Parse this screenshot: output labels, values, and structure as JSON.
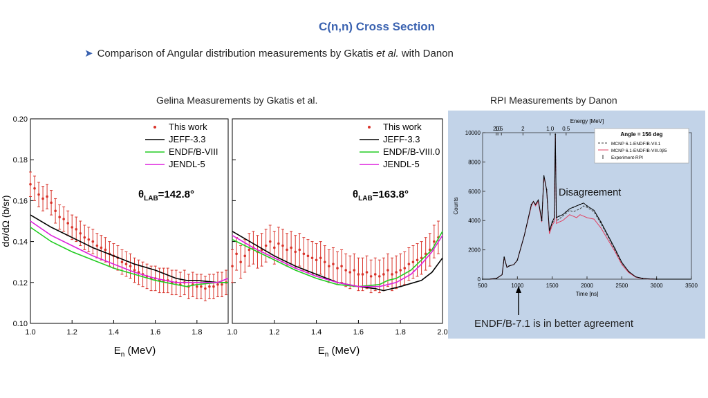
{
  "slide": {
    "title": "C(n,n) Cross Section",
    "bullet_a": "Comparison of Angular distribution measurements by Gkatis",
    "bullet_em": "et al.",
    "bullet_b": "with Danon",
    "left_caption": "Gelina Measurements by Gkatis et al.",
    "right_caption": "RPI Measurements by Danon",
    "note_disagreement": "Disagreement",
    "note_agreement": "ENDF/B-7.1 is in better agreement"
  },
  "colors": {
    "title": "#3a62b0",
    "this_work": "#d9342b",
    "jeff": "#000000",
    "endf": "#22cc22",
    "jendl": "#dd22dd",
    "rpi_bg": "#c2d3e8",
    "mcnp71": "#3a3a3a",
    "mcnp80": "#e24060"
  },
  "chart_data": [
    {
      "type": "scatter",
      "title": "",
      "angle_label": "θLAB=142.8°",
      "xlabel": "En (MeV)",
      "ylabel": "dσ/dΩ (b/sr)",
      "xlim": [
        1.0,
        1.95
      ],
      "ylim": [
        0.1,
        0.2
      ],
      "xticks": [
        "1.0",
        "1.2",
        "1.4",
        "1.6",
        "1.8"
      ],
      "yticks": [
        "0.10",
        "0.12",
        "0.14",
        "0.16",
        "0.18",
        "0.20"
      ],
      "legend": [
        "This work",
        "JEFF-3.3",
        "ENDF/B-VIII",
        "JENDL-5"
      ],
      "legend_position": "top-right",
      "series": [
        {
          "name": "JEFF-3.3",
          "x": [
            1.0,
            1.1,
            1.2,
            1.3,
            1.4,
            1.5,
            1.6,
            1.7,
            1.75,
            1.8,
            1.9,
            1.95
          ],
          "y": [
            0.153,
            0.147,
            0.142,
            0.137,
            0.133,
            0.129,
            0.126,
            0.122,
            0.121,
            0.121,
            0.12,
            0.12
          ]
        },
        {
          "name": "ENDF/B-VIII",
          "x": [
            1.0,
            1.1,
            1.2,
            1.3,
            1.4,
            1.5,
            1.6,
            1.7,
            1.75,
            1.8,
            1.9,
            1.95
          ],
          "y": [
            0.147,
            0.14,
            0.135,
            0.131,
            0.127,
            0.124,
            0.121,
            0.119,
            0.118,
            0.119,
            0.12,
            0.12
          ]
        },
        {
          "name": "JENDL-5",
          "x": [
            1.0,
            1.1,
            1.2,
            1.3,
            1.4,
            1.5,
            1.6,
            1.7,
            1.75,
            1.8,
            1.9,
            1.95
          ],
          "y": [
            0.15,
            0.143,
            0.138,
            0.133,
            0.129,
            0.125,
            0.122,
            0.12,
            0.12,
            0.12,
            0.12,
            0.122
          ]
        },
        {
          "name": "This work",
          "x": [
            1.0,
            1.02,
            1.04,
            1.06,
            1.08,
            1.1,
            1.12,
            1.14,
            1.16,
            1.18,
            1.2,
            1.22,
            1.24,
            1.26,
            1.28,
            1.3,
            1.32,
            1.34,
            1.36,
            1.38,
            1.4,
            1.42,
            1.44,
            1.46,
            1.48,
            1.5,
            1.52,
            1.54,
            1.56,
            1.58,
            1.6,
            1.62,
            1.64,
            1.66,
            1.68,
            1.7,
            1.72,
            1.74,
            1.76,
            1.78,
            1.8,
            1.82,
            1.84,
            1.86,
            1.88,
            1.9,
            1.92,
            1.94
          ],
          "y": [
            0.168,
            0.166,
            0.163,
            0.161,
            0.162,
            0.159,
            0.155,
            0.152,
            0.151,
            0.149,
            0.147,
            0.146,
            0.144,
            0.142,
            0.141,
            0.14,
            0.138,
            0.137,
            0.136,
            0.134,
            0.133,
            0.132,
            0.13,
            0.129,
            0.128,
            0.126,
            0.125,
            0.124,
            0.123,
            0.122,
            0.122,
            0.121,
            0.121,
            0.121,
            0.12,
            0.12,
            0.119,
            0.12,
            0.118,
            0.119,
            0.118,
            0.118,
            0.117,
            0.118,
            0.118,
            0.119,
            0.119,
            0.12
          ],
          "err": [
            0.006,
            0.006,
            0.006,
            0.006,
            0.006,
            0.006,
            0.006,
            0.006,
            0.006,
            0.006,
            0.006,
            0.006,
            0.006,
            0.006,
            0.006,
            0.006,
            0.006,
            0.006,
            0.006,
            0.006,
            0.006,
            0.006,
            0.006,
            0.006,
            0.006,
            0.006,
            0.006,
            0.006,
            0.006,
            0.006,
            0.006,
            0.006,
            0.006,
            0.006,
            0.006,
            0.006,
            0.006,
            0.006,
            0.006,
            0.006,
            0.006,
            0.006,
            0.006,
            0.006,
            0.006,
            0.006,
            0.006,
            0.006
          ]
        }
      ]
    },
    {
      "type": "scatter",
      "title": "",
      "angle_label": "θLAB=163.8°",
      "xlabel": "En (MeV)",
      "xlim": [
        1.0,
        2.0
      ],
      "ylim": [
        0.1,
        0.2
      ],
      "xticks": [
        "1.0",
        "1.2",
        "1.4",
        "1.6",
        "1.8",
        "2.0"
      ],
      "legend": [
        "This work",
        "JEFF-3.3",
        "ENDF/B-VIII.0",
        "JENDL-5"
      ],
      "legend_position": "top-right",
      "series": [
        {
          "name": "JEFF-3.3",
          "x": [
            1.0,
            1.1,
            1.2,
            1.3,
            1.4,
            1.5,
            1.6,
            1.68,
            1.72,
            1.76,
            1.8,
            1.9,
            1.95,
            2.0
          ],
          "y": [
            0.145,
            0.139,
            0.133,
            0.128,
            0.124,
            0.12,
            0.118,
            0.117,
            0.116,
            0.117,
            0.118,
            0.121,
            0.125,
            0.132
          ]
        },
        {
          "name": "ENDF/B-VIII.0",
          "x": [
            1.0,
            1.1,
            1.2,
            1.3,
            1.4,
            1.5,
            1.6,
            1.7,
            1.74,
            1.78,
            1.85,
            1.9,
            1.95,
            2.0
          ],
          "y": [
            0.141,
            0.136,
            0.131,
            0.126,
            0.122,
            0.119,
            0.118,
            0.119,
            0.121,
            0.122,
            0.126,
            0.131,
            0.136,
            0.145
          ]
        },
        {
          "name": "JENDL-5",
          "x": [
            1.0,
            1.1,
            1.2,
            1.3,
            1.4,
            1.5,
            1.6,
            1.7,
            1.74,
            1.78,
            1.85,
            1.9,
            1.95,
            2.0
          ],
          "y": [
            0.143,
            0.137,
            0.132,
            0.127,
            0.123,
            0.12,
            0.118,
            0.118,
            0.119,
            0.12,
            0.124,
            0.129,
            0.135,
            0.143
          ]
        },
        {
          "name": "This work",
          "x": [
            1.0,
            1.02,
            1.04,
            1.06,
            1.08,
            1.1,
            1.12,
            1.14,
            1.16,
            1.18,
            1.2,
            1.22,
            1.24,
            1.26,
            1.28,
            1.3,
            1.32,
            1.34,
            1.36,
            1.38,
            1.4,
            1.42,
            1.44,
            1.46,
            1.48,
            1.5,
            1.52,
            1.54,
            1.56,
            1.58,
            1.6,
            1.62,
            1.64,
            1.66,
            1.68,
            1.7,
            1.72,
            1.74,
            1.76,
            1.78,
            1.8,
            1.82,
            1.84,
            1.86,
            1.88,
            1.9,
            1.92,
            1.94,
            1.96,
            1.98
          ],
          "y": [
            0.128,
            0.134,
            0.13,
            0.133,
            0.136,
            0.137,
            0.135,
            0.136,
            0.138,
            0.14,
            0.137,
            0.139,
            0.138,
            0.136,
            0.137,
            0.135,
            0.136,
            0.134,
            0.133,
            0.132,
            0.131,
            0.132,
            0.13,
            0.128,
            0.129,
            0.127,
            0.128,
            0.126,
            0.125,
            0.126,
            0.124,
            0.124,
            0.125,
            0.123,
            0.124,
            0.123,
            0.124,
            0.126,
            0.124,
            0.125,
            0.126,
            0.127,
            0.129,
            0.13,
            0.131,
            0.132,
            0.134,
            0.136,
            0.14,
            0.142
          ],
          "err": [
            0.008,
            0.008,
            0.008,
            0.008,
            0.008,
            0.008,
            0.008,
            0.008,
            0.008,
            0.008,
            0.008,
            0.008,
            0.008,
            0.008,
            0.008,
            0.008,
            0.008,
            0.008,
            0.008,
            0.008,
            0.008,
            0.008,
            0.008,
            0.008,
            0.008,
            0.008,
            0.008,
            0.008,
            0.008,
            0.008,
            0.008,
            0.008,
            0.008,
            0.008,
            0.008,
            0.008,
            0.008,
            0.008,
            0.008,
            0.008,
            0.008,
            0.008,
            0.008,
            0.008,
            0.008,
            0.008,
            0.008,
            0.008,
            0.008,
            0.008
          ]
        }
      ]
    },
    {
      "type": "line",
      "title": "",
      "xlabel": "Time [ns]",
      "ylabel": "Counts",
      "top_axis_label": "Energy [MeV]",
      "top_ticks": [
        {
          "t": 695,
          "label": "20"
        },
        {
          "t": 720,
          "label": "10"
        },
        {
          "t": 770,
          "label": "5"
        },
        {
          "t": 1080,
          "label": "2"
        },
        {
          "t": 1470,
          "label": "1.0"
        },
        {
          "t": 1700,
          "label": "0.5"
        }
      ],
      "xlim": [
        500,
        3500
      ],
      "ylim": [
        0,
        10000
      ],
      "xticks": [
        "500",
        "1000",
        "1500",
        "2000",
        "2500",
        "3000",
        "3500"
      ],
      "yticks": [
        "0",
        "2000",
        "4000",
        "6000",
        "8000",
        "10000"
      ],
      "legend_title": "Angle = 156 deg",
      "legend": [
        "MCNP 6.1-ENDF/B-VII.1",
        "MCNP 6.1-ENDF/B-VIII.0β5",
        "Experiment-RPI"
      ],
      "legend_position": "top-right",
      "series": [
        {
          "name": "MCNP 6.1-ENDF/B-VII.1",
          "x": [
            500,
            600,
            700,
            780,
            810,
            850,
            880,
            950,
            1000,
            1100,
            1200,
            1230,
            1260,
            1300,
            1350,
            1380,
            1420,
            1460,
            1500,
            1530,
            1545,
            1560,
            1600,
            1650,
            1700,
            1750,
            1800,
            1850,
            1900,
            1950,
            2000,
            2100,
            2200,
            2300,
            2400,
            2500,
            2600,
            2700,
            2800,
            2900,
            3000,
            3500
          ],
          "y": [
            0,
            0,
            50,
            300,
            1500,
            800,
            900,
            1000,
            1300,
            3000,
            5000,
            5300,
            5100,
            5400,
            4000,
            7000,
            6100,
            3200,
            3800,
            4100,
            9900,
            4000,
            4100,
            4300,
            4500,
            4700,
            4600,
            4700,
            4800,
            5000,
            4900,
            4600,
            3800,
            2900,
            2000,
            1100,
            500,
            150,
            50,
            10,
            0,
            0
          ]
        },
        {
          "name": "MCNP 6.1-ENDF/B-VIII.0β5",
          "x": [
            500,
            600,
            700,
            780,
            810,
            850,
            880,
            950,
            1000,
            1100,
            1200,
            1230,
            1260,
            1300,
            1350,
            1380,
            1420,
            1460,
            1500,
            1530,
            1545,
            1560,
            1600,
            1650,
            1700,
            1750,
            1800,
            1850,
            1900,
            1950,
            2000,
            2100,
            2200,
            2300,
            2400,
            2500,
            2600,
            2700,
            2800,
            2900,
            3000,
            3500
          ],
          "y": [
            0,
            0,
            50,
            300,
            1500,
            800,
            900,
            1000,
            1300,
            3000,
            5000,
            5300,
            5000,
            5300,
            3900,
            7000,
            6100,
            3100,
            3700,
            3900,
            9800,
            3800,
            3900,
            4000,
            4200,
            4400,
            4300,
            4200,
            4400,
            4300,
            4200,
            4100,
            3500,
            2700,
            1900,
            1000,
            450,
            130,
            40,
            10,
            0,
            0
          ]
        },
        {
          "name": "Experiment-RPI",
          "x": [
            500,
            600,
            700,
            780,
            810,
            850,
            880,
            950,
            1000,
            1100,
            1200,
            1230,
            1260,
            1300,
            1350,
            1380,
            1420,
            1460,
            1500,
            1530,
            1545,
            1560,
            1600,
            1650,
            1700,
            1750,
            1800,
            1850,
            1900,
            1950,
            2000,
            2100,
            2200,
            2300,
            2400,
            2500,
            2600,
            2700,
            2800,
            2900,
            3000,
            3500
          ],
          "y": [
            0,
            0,
            50,
            300,
            1500,
            800,
            900,
            1000,
            1300,
            3000,
            5100,
            5300,
            5100,
            5400,
            4000,
            7100,
            6100,
            3300,
            3900,
            4200,
            9900,
            4200,
            4300,
            4400,
            4600,
            4800,
            4900,
            5000,
            5100,
            5200,
            5000,
            4700,
            3900,
            3000,
            2100,
            1150,
            520,
            160,
            50,
            10,
            0,
            0
          ]
        }
      ]
    }
  ]
}
